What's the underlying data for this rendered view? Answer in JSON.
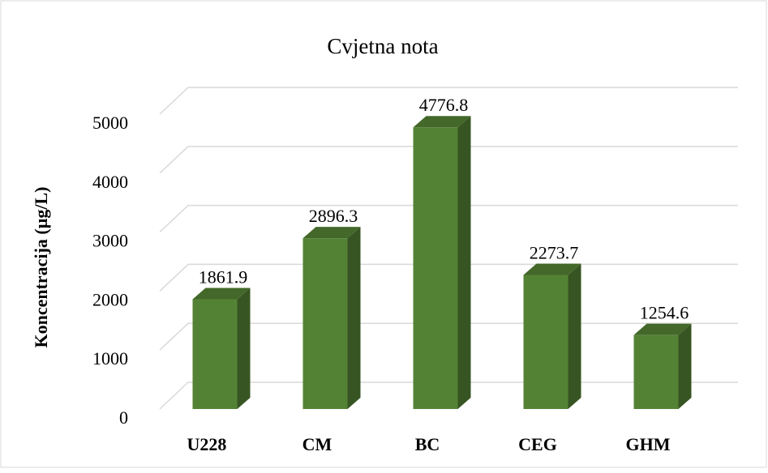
{
  "chart_data": {
    "type": "bar3d",
    "title": "Cvjetna nota",
    "y_label": "Koncentracija (µg/L)",
    "categories": [
      "U228",
      "CM",
      "BC",
      "CEG",
      "GHM"
    ],
    "values": [
      1861.9,
      2896.3,
      4776.8,
      2273.7,
      1254.6
    ],
    "color": "#548235",
    "ylim": [
      0,
      5000
    ],
    "yticks": [
      0,
      1000,
      2000,
      3000,
      4000,
      5000
    ],
    "grid": true
  }
}
